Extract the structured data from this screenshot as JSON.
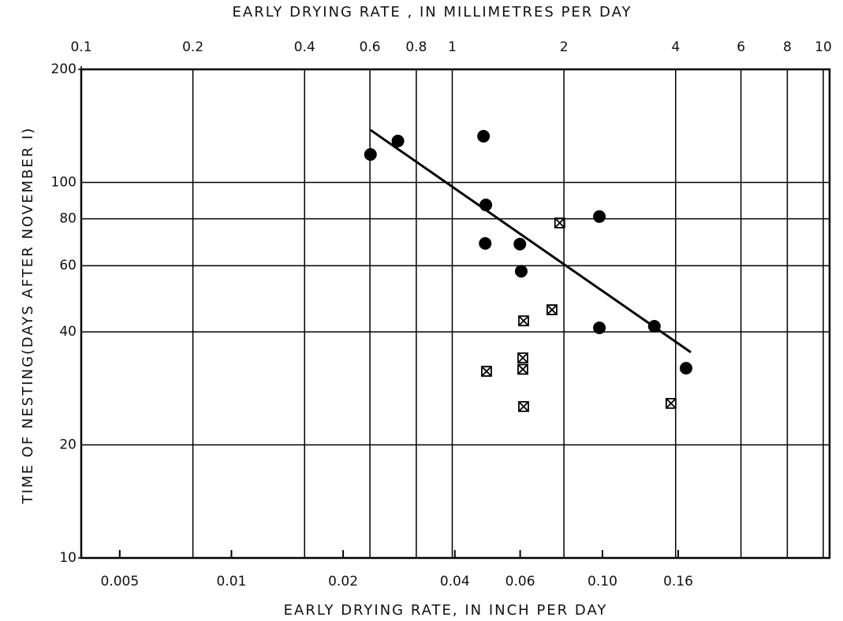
{
  "chart_data": {
    "type": "scatter",
    "xlabel": "EARLY  DRYING  RATE,  IN  INCH  PER  DAY",
    "x2label": "EARLY  DRYING  RATE , IN  MILLIMETRES  PER  DAY",
    "ylabel": "TIME OF NESTING(DAYS AFTER NOVEMBER I)",
    "xscale": "log",
    "yscale": "log",
    "grid": true,
    "xlim": [
      0.003937,
      0.4094
    ],
    "xticks": [
      0.005,
      0.01,
      0.02,
      0.04,
      0.06,
      {
        "value": 0.1,
        "label": "0.10"
      },
      0.16
    ],
    "x2lim": [
      0.1,
      10.4
    ],
    "x2ticks": [
      0.1,
      0.2,
      0.4,
      0.6,
      0.8,
      1,
      2,
      4,
      6,
      8,
      10
    ],
    "ylim": [
      10,
      200
    ],
    "yticks": [
      10,
      20,
      40,
      60,
      80,
      100,
      200
    ],
    "series": [
      {
        "marker": "circle",
        "color": "#000000",
        "x": [
          0.0237,
          0.0281,
          0.0478,
          0.0485,
          0.0483,
          0.0599,
          0.0604,
          0.0981,
          0.0981,
          0.138,
          0.168
        ],
        "values": [
          118.7,
          128.9,
          132.7,
          87.1,
          68.8,
          68.5,
          58.0,
          81.1,
          41.0,
          41.4,
          32.0
        ]
      },
      {
        "marker": "boxed-x",
        "color": "#000000",
        "x": [
          0.0767,
          0.0613,
          0.0731,
          0.061,
          0.061,
          0.0487,
          0.0613,
          0.153
        ],
        "values": [
          78.0,
          42.8,
          45.8,
          34.1,
          31.8,
          31.4,
          25.3,
          25.8
        ]
      },
      {
        "marker": "line",
        "color": "#000000",
        "x": [
          0.0237,
          0.173
        ],
        "values": [
          137.9,
          35.3
        ]
      }
    ]
  }
}
